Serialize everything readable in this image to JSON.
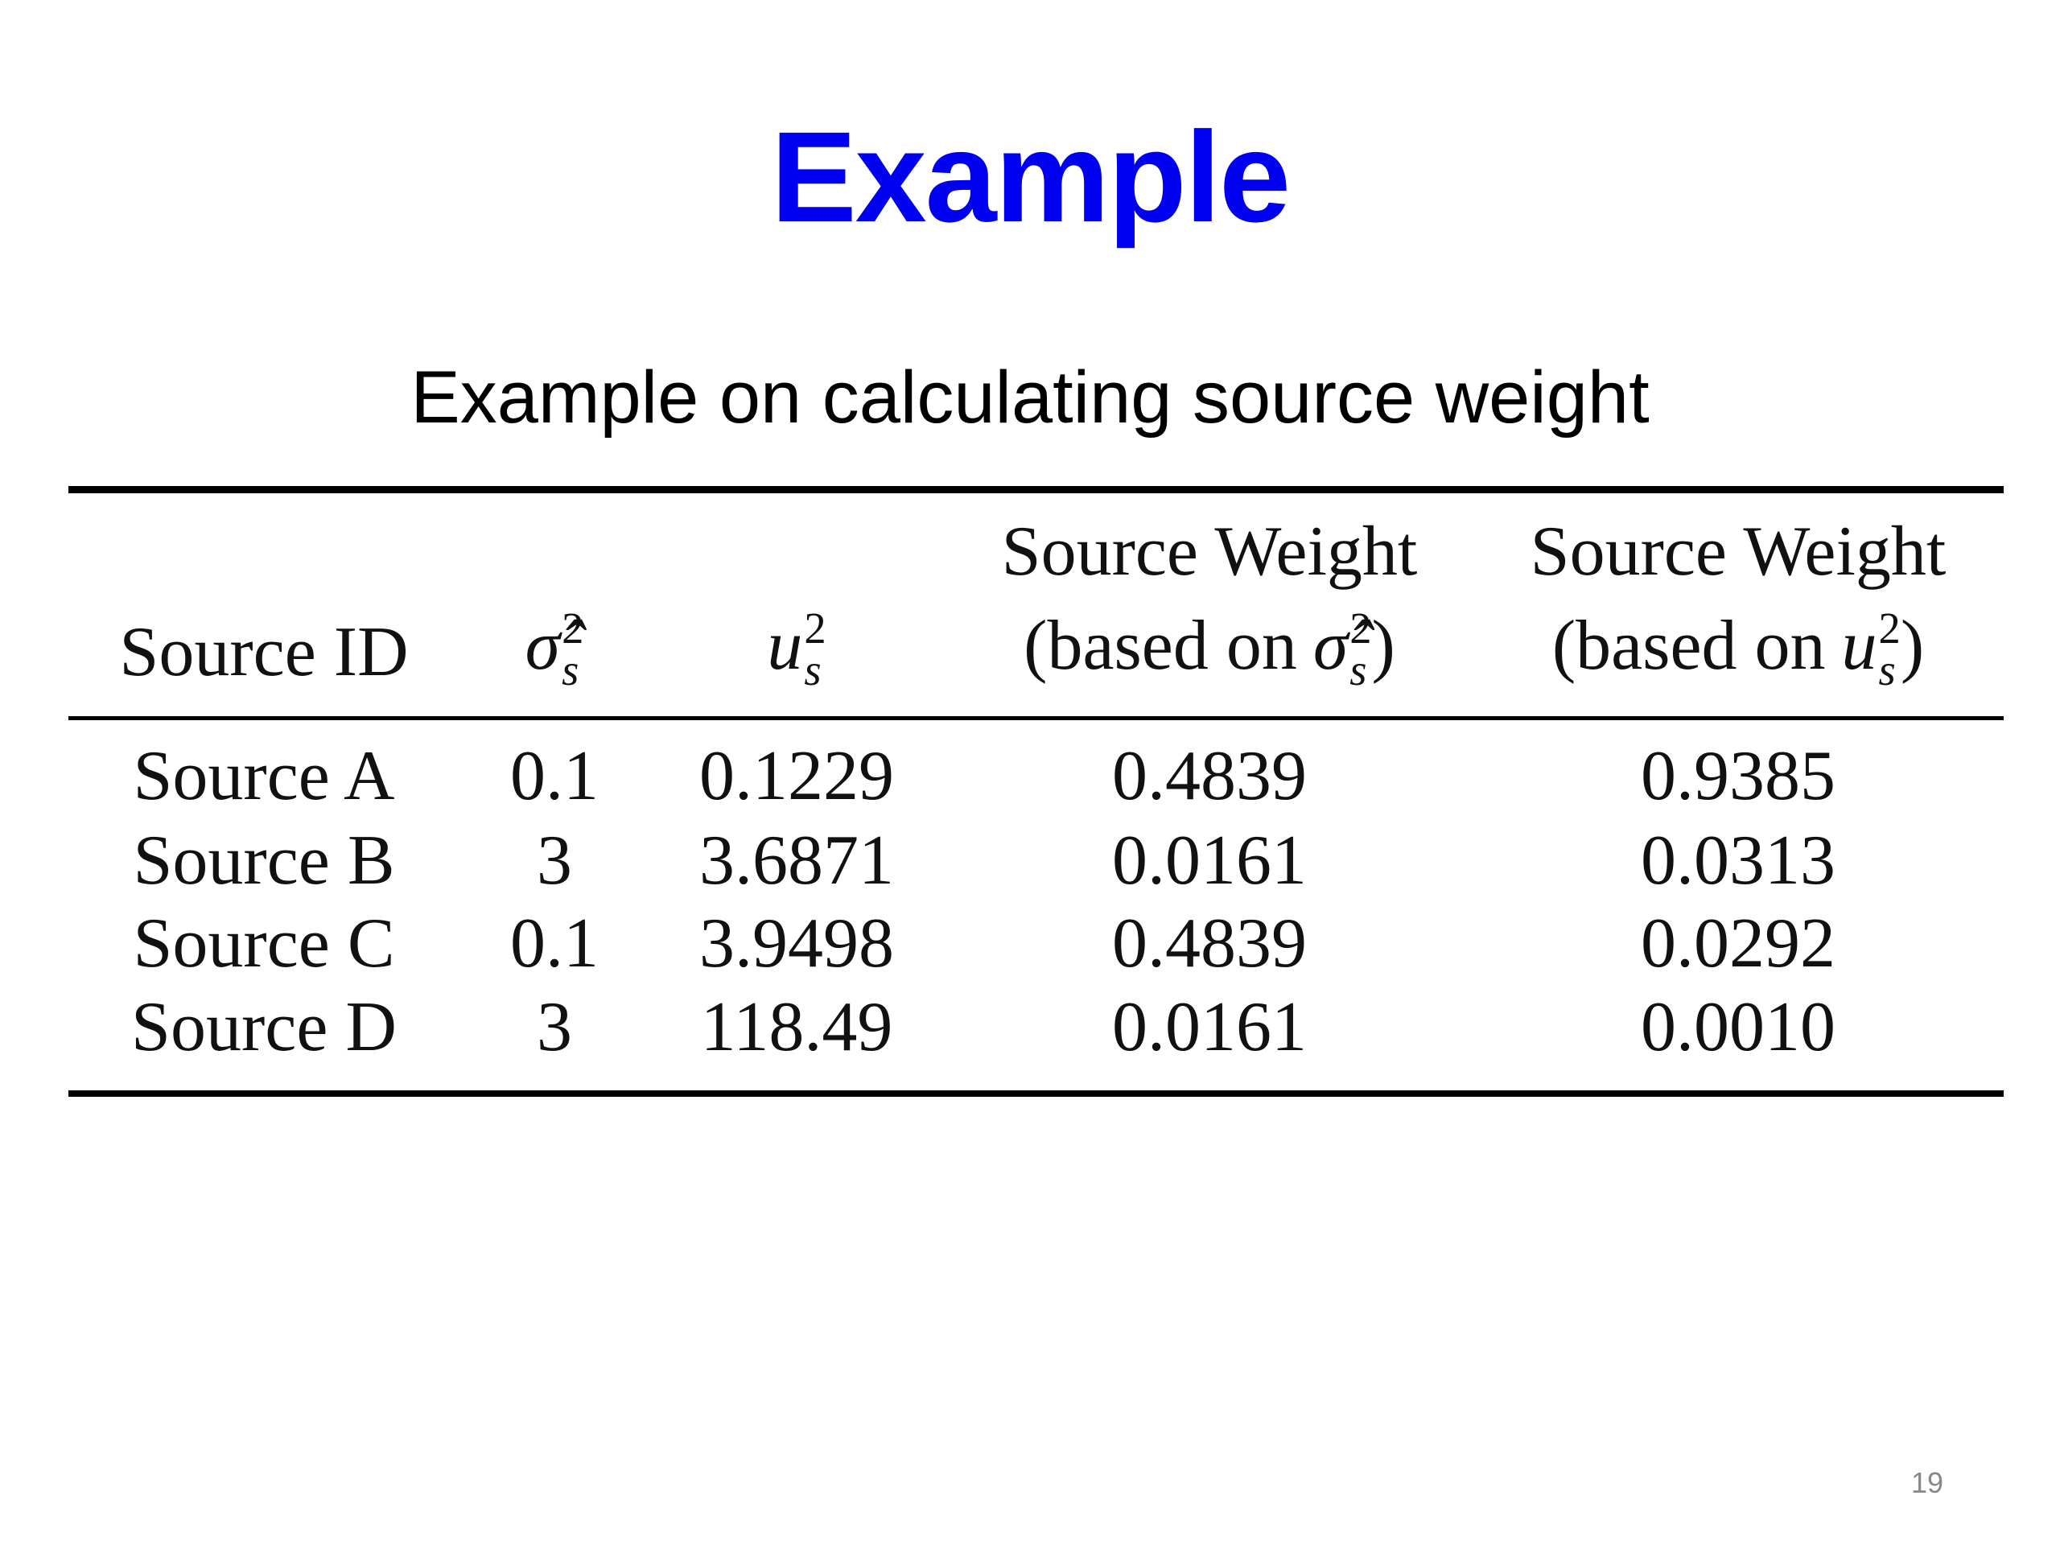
{
  "slide": {
    "title": "Example",
    "subtitle": "Example on calculating source weight",
    "table": {
      "header": [
        {
          "text": "Source ID"
        },
        {
          "symbol": {
            "base": "σ̂",
            "sup": "2",
            "sub": "s"
          }
        },
        {
          "symbol": {
            "base": "u",
            "sup": "2",
            "sub": "s"
          }
        },
        {
          "line1": "Source Weight",
          "prefix": "(based on",
          "symbol": {
            "base": "σ̂",
            "sup": "2",
            "sub": "s"
          },
          "suffix": ")"
        },
        {
          "line1": "Source Weight",
          "prefix": "(based on",
          "symbol": {
            "base": "u",
            "sup": "2",
            "sub": "s"
          },
          "suffix": ")"
        }
      ],
      "rows": [
        [
          "Source A",
          "0.1",
          "0.1229",
          "0.4839",
          "0.9385"
        ],
        [
          "Source B",
          "3",
          "3.6871",
          "0.0161",
          "0.0313"
        ],
        [
          "Source C",
          "0.1",
          "3.9498",
          "0.4839",
          "0.0292"
        ],
        [
          "Source D",
          "3",
          "118.49",
          "0.0161",
          "0.0010"
        ]
      ]
    },
    "page_number": "19"
  }
}
